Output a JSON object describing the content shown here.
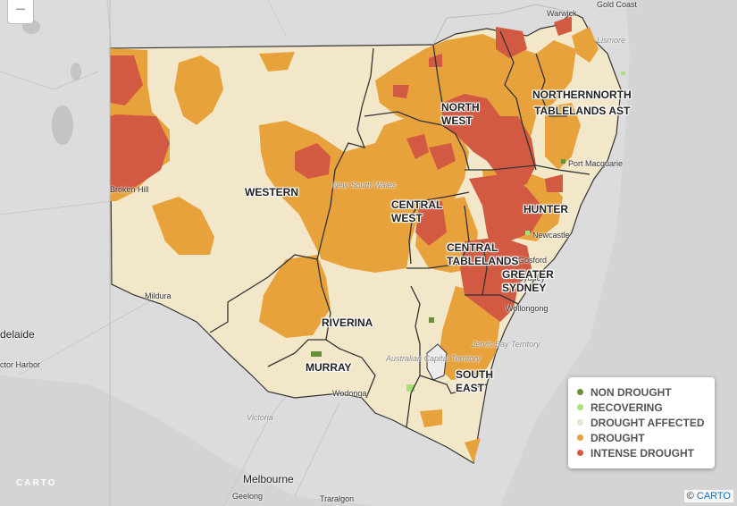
{
  "controls": {
    "zoom_out_label": "−"
  },
  "colors": {
    "background": "#dcdcdc",
    "non_drought": "#6b8e3a",
    "recovering": "#a8e07a",
    "drought_affected": "#f3e7c9",
    "drought": "#e8a23c",
    "intense_drought": "#d25a42",
    "boundary": "#333333"
  },
  "regions": [
    {
      "id": "western",
      "label": "WESTERN"
    },
    {
      "id": "north-west",
      "label_lines": [
        "NORTH",
        "WEST"
      ]
    },
    {
      "id": "northern-tablelands",
      "label": "NORTHERN"
    },
    {
      "id": "north-coast",
      "label": "NORTH"
    },
    {
      "id": "tablelands-east",
      "label": "TABLELANDS AST"
    },
    {
      "id": "central-west",
      "label_lines": [
        "CENTRAL",
        "WEST"
      ]
    },
    {
      "id": "hunter",
      "label": "HUNTER"
    },
    {
      "id": "central-tablelands",
      "label_lines": [
        "CENTRAL",
        "TABLELANDS"
      ]
    },
    {
      "id": "greater-sydney",
      "label_lines": [
        "GREATER",
        "SYDNEY"
      ]
    },
    {
      "id": "riverina",
      "label": "RIVERINA"
    },
    {
      "id": "murray",
      "label": "MURRAY"
    },
    {
      "id": "south-east",
      "label_lines": [
        "SOUTH",
        "EAST"
      ]
    }
  ],
  "places": {
    "warwick": "Warwick",
    "gold_coast": "Gold Coast",
    "lismore": "Lismore",
    "port_macquarie": "Port Macquarie",
    "newcastle": "Newcastle",
    "gosford": "Gosford",
    "sydney": "Sydney",
    "wollongong": "Wollongong",
    "broken_hill": "Broken Hill",
    "mildura": "Mildura",
    "wodonga": "Wodonga",
    "adelaide": "delaide",
    "victor_harbor": "ctor Harbor",
    "victoria": "Victoria",
    "melbourne": "Melbourne",
    "geelong": "Geelong",
    "traralgon": "Traralgon",
    "new_south_wales": "New South Wales",
    "act": "Australian Capital Territory",
    "jervis_bay": "Jervis Bay Territory"
  },
  "legend": {
    "items": [
      {
        "label": "NON DROUGHT",
        "color": "#6b8e3a"
      },
      {
        "label": "RECOVERING",
        "color": "#a8e07a"
      },
      {
        "label": "DROUGHT AFFECTED",
        "color": "#f3e7c9"
      },
      {
        "label": "DROUGHT",
        "color": "#e8a23c"
      },
      {
        "label": "INTENSE DROUGHT",
        "color": "#d25a42"
      }
    ]
  },
  "attribution": {
    "prefix": "©",
    "link": "CARTO"
  },
  "basemap_logo": "CARTO"
}
